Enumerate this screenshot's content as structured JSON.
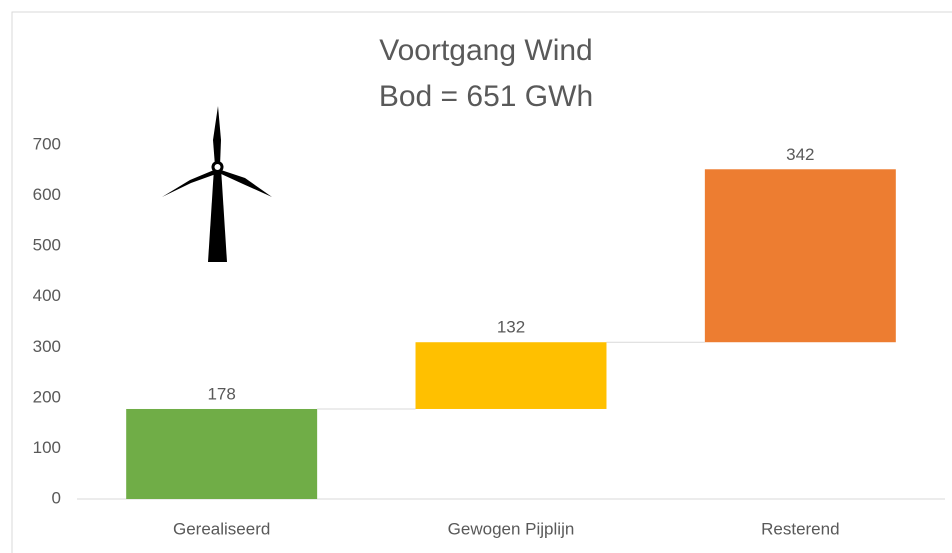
{
  "chart_data": {
    "type": "waterfall",
    "title": "Voortgang Wind",
    "subtitle": "Bod = 651 GWh",
    "categories": [
      "Gerealiseerd",
      "Gewogen Pijplijn",
      "Resterend"
    ],
    "values": [
      178,
      132,
      342
    ],
    "colors": [
      "#70ad47",
      "#ffc000",
      "#ed7d31"
    ],
    "ylim": [
      0,
      700
    ],
    "yticks": [
      0,
      100,
      200,
      300,
      400,
      500,
      600,
      700
    ],
    "grid": false
  }
}
